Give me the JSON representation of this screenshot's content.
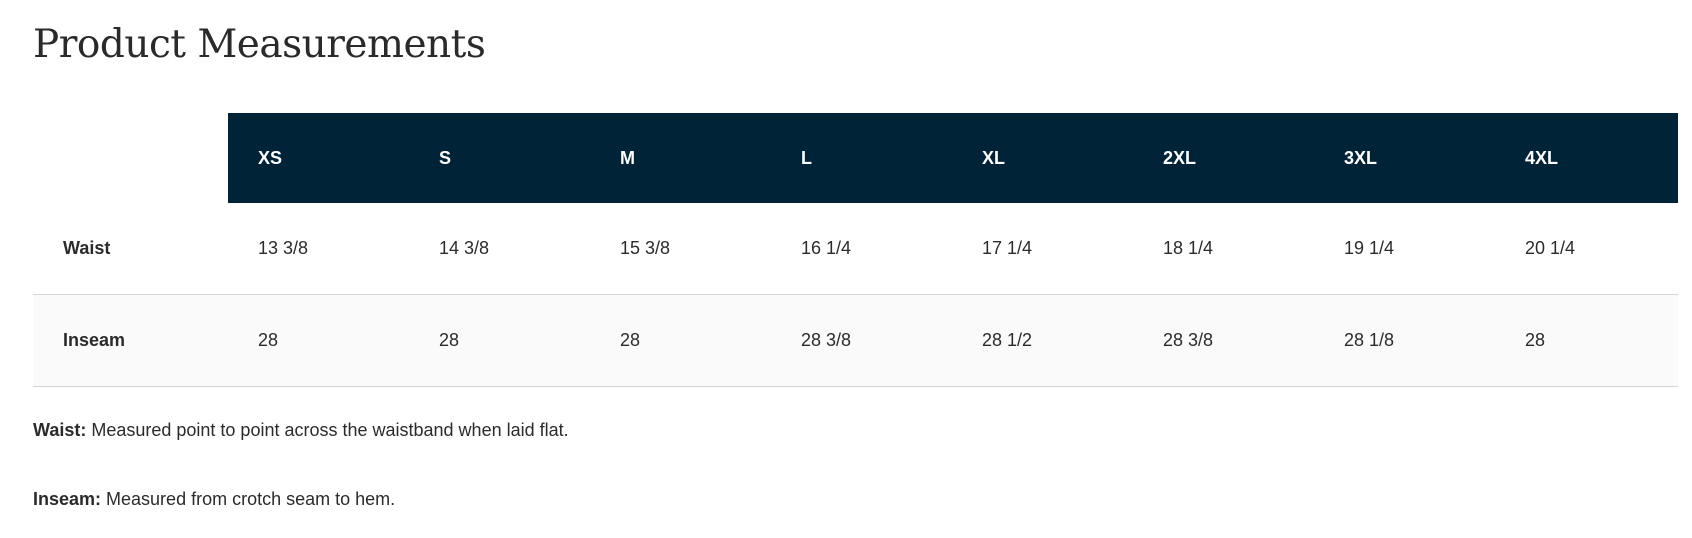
{
  "title": "Product Measurements",
  "table": {
    "headers": [
      "XS",
      "S",
      "M",
      "L",
      "XL",
      "2XL",
      "3XL",
      "4XL"
    ],
    "rows": [
      {
        "label": "Waist",
        "values": [
          "13 3/8",
          "14 3/8",
          "15 3/8",
          "16 1/4",
          "17 1/4",
          "18 1/4",
          "19 1/4",
          "20 1/4"
        ]
      },
      {
        "label": "Inseam",
        "values": [
          "28",
          "28",
          "28",
          "28 3/8",
          "28 1/2",
          "28 3/8",
          "28 1/8",
          "28"
        ]
      }
    ]
  },
  "notes": [
    {
      "term": "Waist:",
      "text": " Measured point to point across the waistband when laid flat."
    },
    {
      "term": "Inseam:",
      "text": " Measured from crotch seam to hem."
    }
  ],
  "colors": {
    "header_bg": "#012338",
    "header_text": "#ffffff"
  }
}
